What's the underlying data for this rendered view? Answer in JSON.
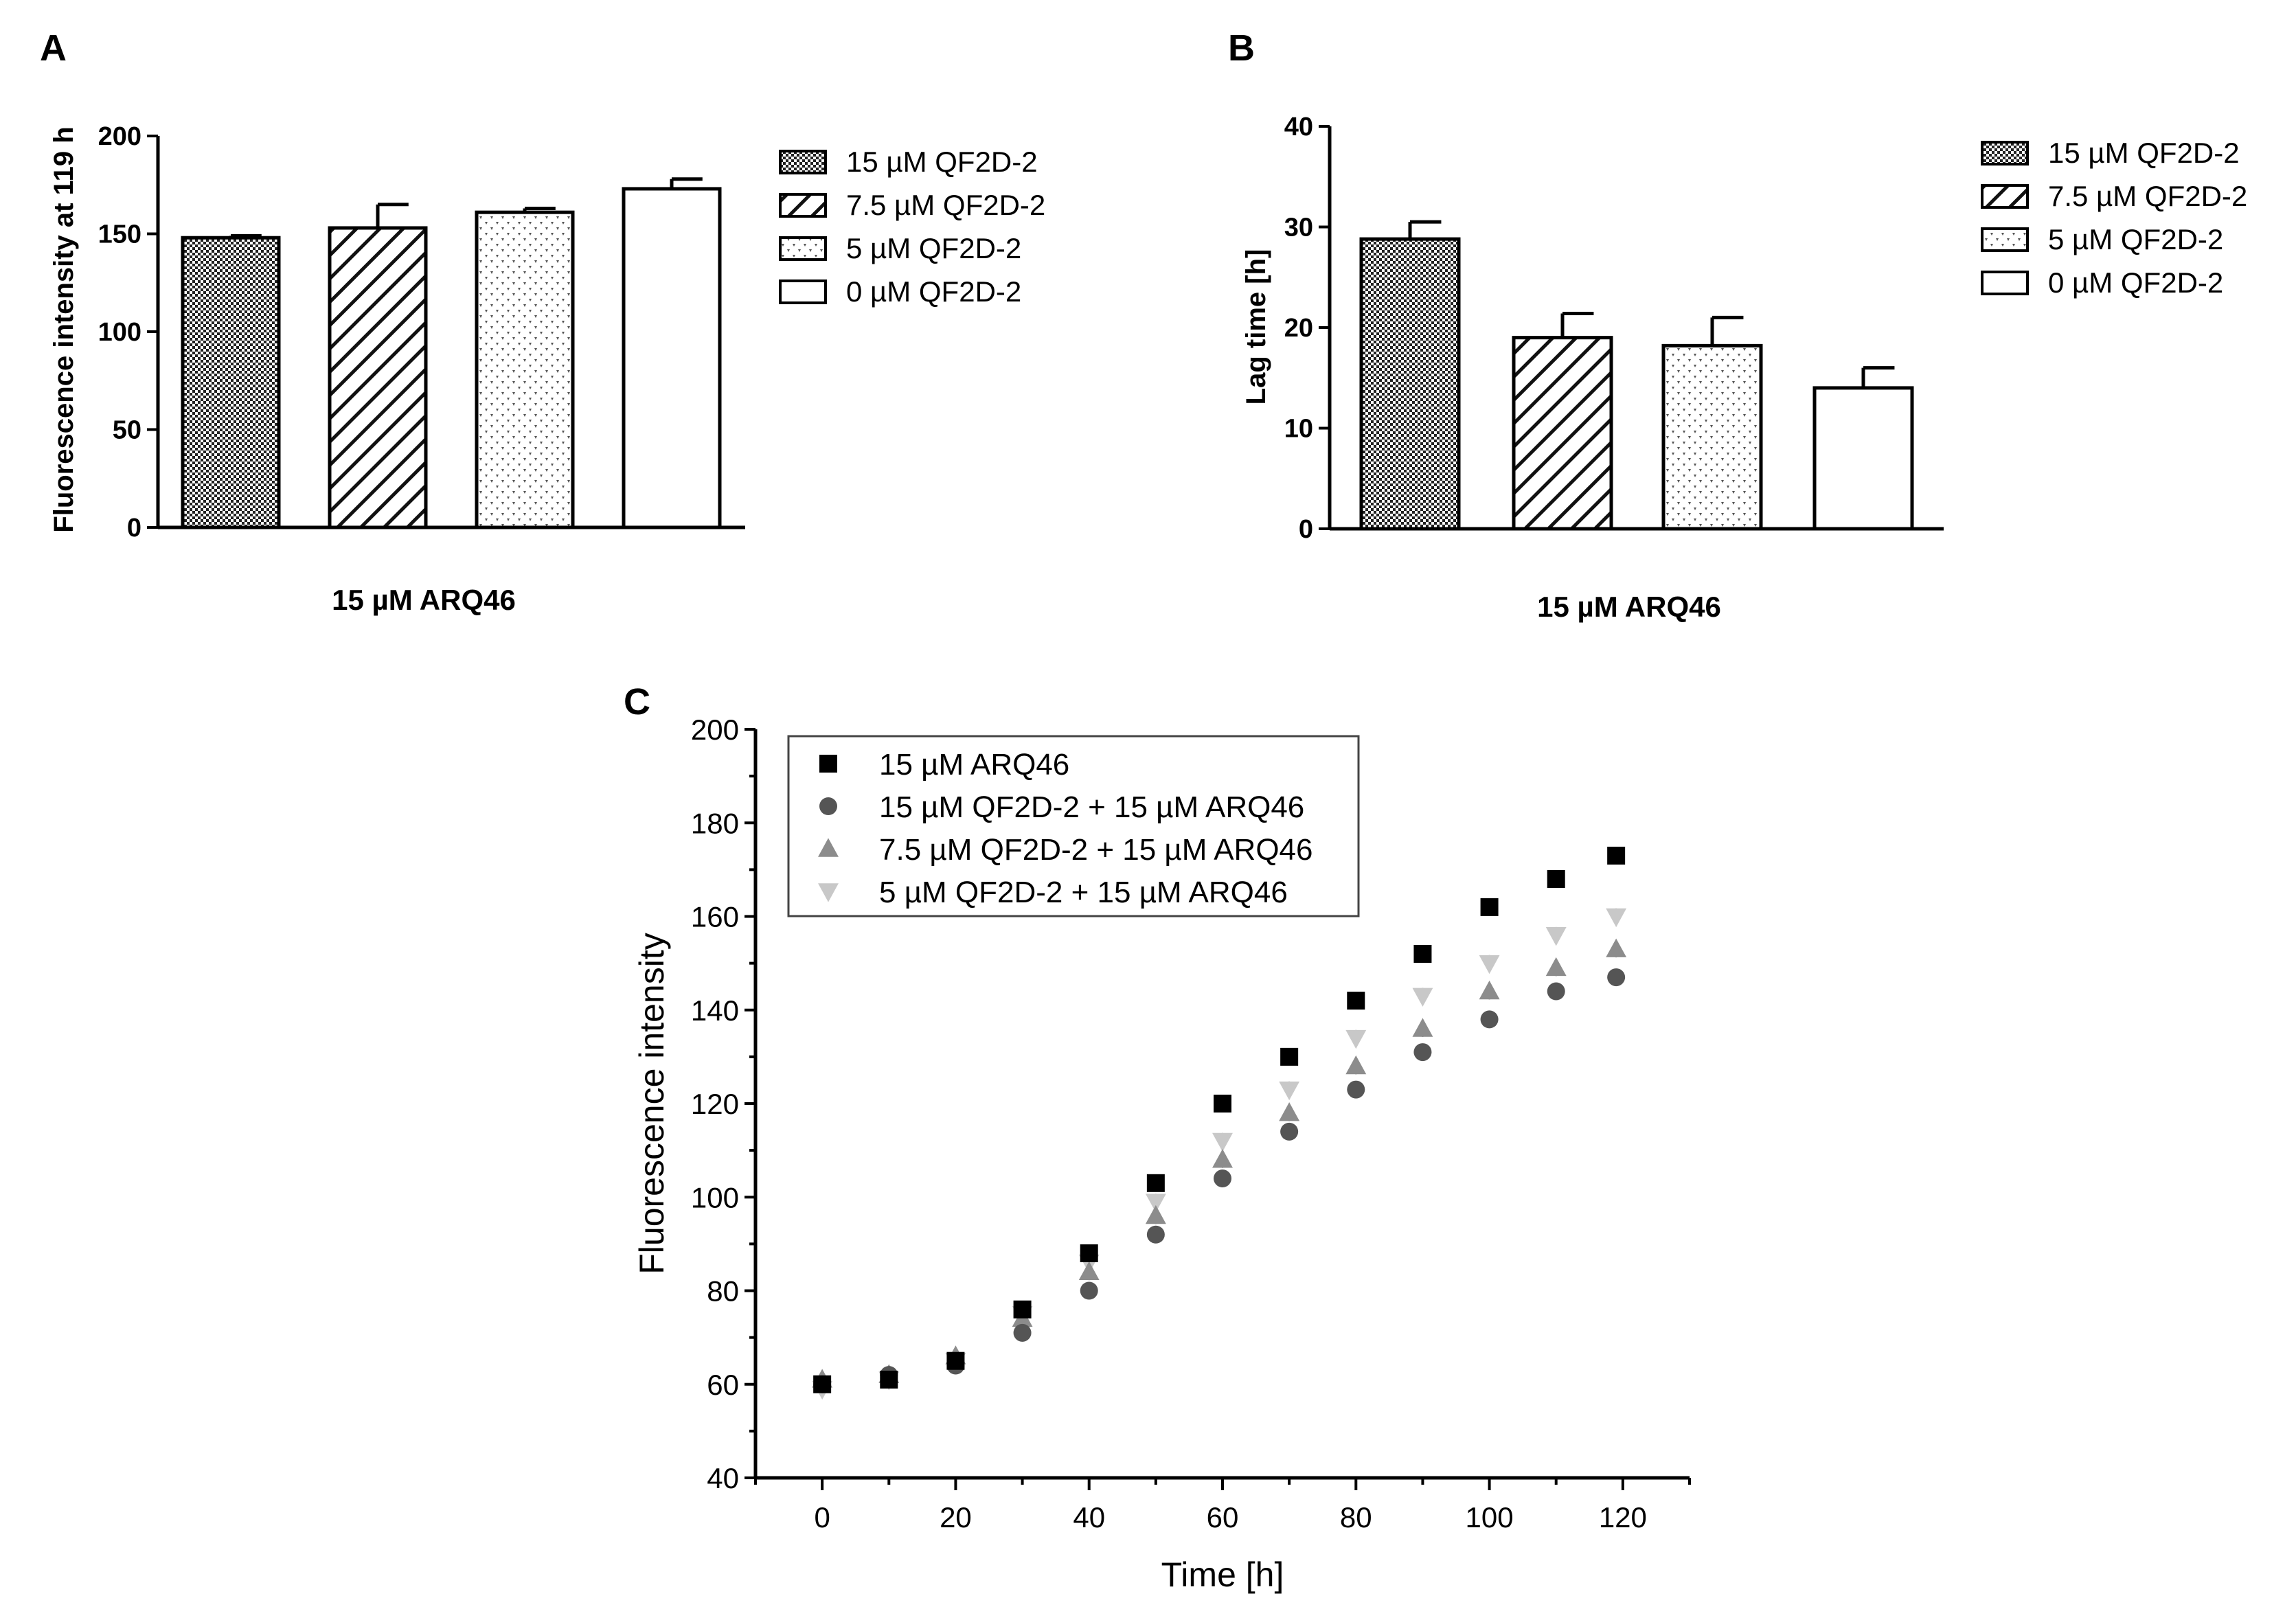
{
  "chart_data": [
    {
      "panel": "A",
      "type": "bar",
      "title": "",
      "xlabel": "15 µM ARQ46",
      "ylabel": "Fluorescence intensity at 119 h",
      "ylim": [
        0,
        200
      ],
      "yticks": [
        0,
        50,
        100,
        150,
        200
      ],
      "categories": [
        "15 µM QF2D-2",
        "7.5 µM QF2D-2",
        "5 µM QF2D-2",
        "0 µM QF2D-2"
      ],
      "values": [
        148,
        153,
        161,
        173
      ],
      "errors": [
        1,
        12,
        2,
        5
      ],
      "legend": [
        "15 µM QF2D-2",
        "7.5 µM QF2D-2",
        "5 µM QF2D-2",
        "0 µM QF2D-2"
      ],
      "legend_position": "right",
      "patterns": [
        "crosshatch",
        "diagonal",
        "dots",
        "none"
      ]
    },
    {
      "panel": "B",
      "type": "bar",
      "title": "",
      "xlabel": "15 µM ARQ46",
      "ylabel": "Lag time [h]",
      "ylim": [
        0,
        40
      ],
      "yticks": [
        0,
        10,
        20,
        30,
        40
      ],
      "categories": [
        "15 µM QF2D-2",
        "7.5 µM QF2D-2",
        "5 µM QF2D-2",
        "0 µM QF2D-2"
      ],
      "values": [
        28.8,
        19.0,
        18.2,
        14.0
      ],
      "errors": [
        1.7,
        2.4,
        2.8,
        2.0
      ],
      "legend": [
        "15 µM QF2D-2",
        "7.5 µM QF2D-2",
        "5 µM QF2D-2",
        "0 µM QF2D-2"
      ],
      "legend_position": "right",
      "patterns": [
        "crosshatch",
        "diagonal",
        "dots",
        "none"
      ]
    },
    {
      "panel": "C",
      "type": "scatter",
      "title": "",
      "xlabel": "Time [h]",
      "ylabel": "Fluorescence intensity",
      "xlim": [
        -10,
        130
      ],
      "ylim": [
        40,
        200
      ],
      "xticks": [
        0,
        20,
        40,
        60,
        80,
        100,
        120
      ],
      "yticks": [
        40,
        60,
        80,
        100,
        120,
        140,
        160,
        180,
        200
      ],
      "legend_position": "top-left",
      "series": [
        {
          "name": "15 µM ARQ46",
          "marker": "square",
          "color": "#000000",
          "x": [
            0,
            10,
            20,
            30,
            40,
            50,
            60,
            70,
            80,
            90,
            100,
            110,
            119
          ],
          "y": [
            60,
            61,
            65,
            76,
            88,
            103,
            120,
            130,
            142,
            152,
            162,
            168,
            173
          ]
        },
        {
          "name": "15 µM QF2D-2 + 15 µM ARQ46",
          "marker": "circle",
          "color": "#555555",
          "x": [
            0,
            10,
            20,
            30,
            40,
            50,
            60,
            70,
            80,
            90,
            100,
            110,
            119
          ],
          "y": [
            60,
            62,
            64,
            71,
            80,
            92,
            104,
            114,
            123,
            131,
            138,
            144,
            147
          ]
        },
        {
          "name": "7.5 µM QF2D-2 + 15 µM ARQ46",
          "marker": "triangle-up",
          "color": "#8c8c8c",
          "x": [
            0,
            10,
            20,
            30,
            40,
            50,
            60,
            70,
            80,
            90,
            100,
            110,
            119
          ],
          "y": [
            61,
            62,
            66,
            74,
            84,
            96,
            108,
            118,
            128,
            136,
            144,
            149,
            153
          ]
        },
        {
          "name": "5 µM QF2D-2 + 15 µM ARQ46",
          "marker": "triangle-down",
          "color": "#c8c8c8",
          "x": [
            0,
            10,
            20,
            30,
            40,
            50,
            60,
            70,
            80,
            90,
            100,
            110,
            119
          ],
          "y": [
            59,
            61,
            65,
            75,
            86,
            99,
            112,
            123,
            134,
            143,
            150,
            156,
            160
          ]
        }
      ]
    }
  ],
  "panel_labels": {
    "a": "A",
    "b": "B",
    "c": "C"
  }
}
